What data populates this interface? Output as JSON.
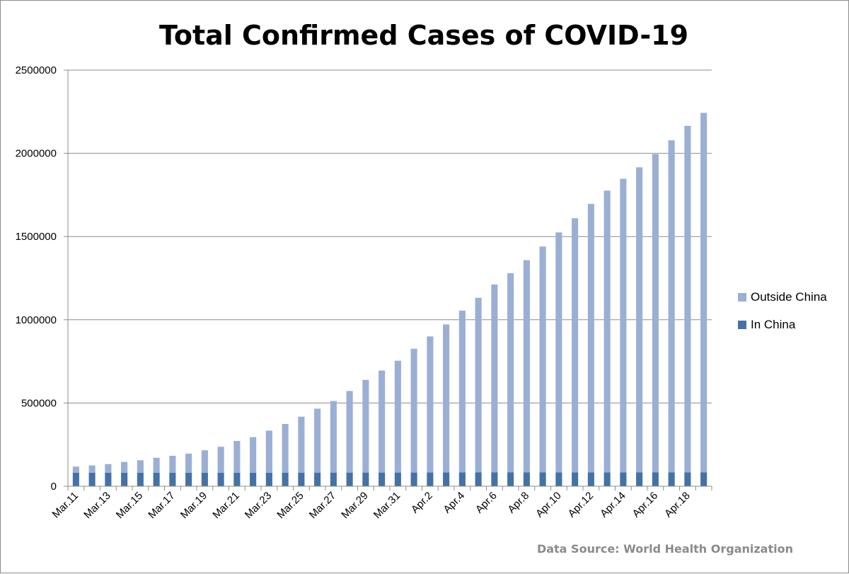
{
  "chart_data": {
    "type": "bar",
    "stacked": true,
    "title": "Total Confirmed Cases of COVID-19",
    "source_note": "Data Source: World Health Organization",
    "xlabel": "",
    "ylabel": "",
    "ylim": [
      0,
      2500000
    ],
    "y_ticks": [
      "0",
      "500000",
      "1000000",
      "1500000",
      "2000000",
      "2500000"
    ],
    "grid": "horizontal",
    "legend_position": "right",
    "categories": [
      "Mar.11",
      "Mar.12",
      "Mar.13",
      "Mar.14",
      "Mar.15",
      "Mar.16",
      "Mar.17",
      "Mar.18",
      "Mar.19",
      "Mar.20",
      "Mar.21",
      "Mar.22",
      "Mar.23",
      "Mar.24",
      "Mar.25",
      "Mar.26",
      "Mar.27",
      "Mar.28",
      "Mar.29",
      "Mar.30",
      "Mar.31",
      "Apr.1",
      "Apr.2",
      "Apr.3",
      "Apr.4",
      "Apr.5",
      "Apr.6",
      "Apr.7",
      "Apr.8",
      "Apr.9",
      "Apr.10",
      "Apr.11",
      "Apr.12",
      "Apr.13",
      "Apr.14",
      "Apr.15",
      "Apr.16",
      "Apr.17",
      "Apr.18",
      "Apr.19"
    ],
    "x_tick_labels": [
      "Mar.11",
      "",
      "Mar.13",
      "",
      "Mar.15",
      "",
      "Mar.17",
      "",
      "Mar.19",
      "",
      "Mar.21",
      "",
      "Mar.23",
      "",
      "Mar.25",
      "",
      "Mar.27",
      "",
      "Mar.29",
      "",
      "Mar.31",
      "",
      "Apr.2",
      "",
      "Apr.4",
      "",
      "Apr.6",
      "",
      "Apr.8",
      "",
      "Apr.10",
      "",
      "Apr.12",
      "",
      "Apr.14",
      "",
      "Apr.16",
      "",
      "Apr.18",
      ""
    ],
    "series": [
      {
        "name": "In China",
        "color": "#4472a4",
        "values": [
          80900,
          80980,
          81020,
          81050,
          81050,
          81080,
          81120,
          81170,
          81240,
          81300,
          81420,
          81500,
          81600,
          81750,
          81850,
          81950,
          82050,
          82150,
          82200,
          82300,
          82350,
          82450,
          82550,
          82650,
          82750,
          82850,
          82950,
          83000,
          83050,
          83100,
          83150,
          83200,
          83300,
          83400,
          83500,
          83600,
          83700,
          83750,
          83800,
          83850
        ]
      },
      {
        "name": "Outside China",
        "color": "#9bafd4",
        "values": [
          37100,
          44020,
          51980,
          64950,
          74950,
          89920,
          101880,
          114830,
          134760,
          155700,
          190580,
          213500,
          252400,
          292250,
          336150,
          384050,
          429950,
          489850,
          556800,
          612700,
          671650,
          743550,
          817450,
          889350,
          972250,
          1049150,
          1129050,
          1197000,
          1274950,
          1356900,
          1441850,
          1526800,
          1612700,
          1692600,
          1763500,
          1832400,
          1911300,
          1994250,
          2081200,
          2159150
        ]
      }
    ]
  }
}
